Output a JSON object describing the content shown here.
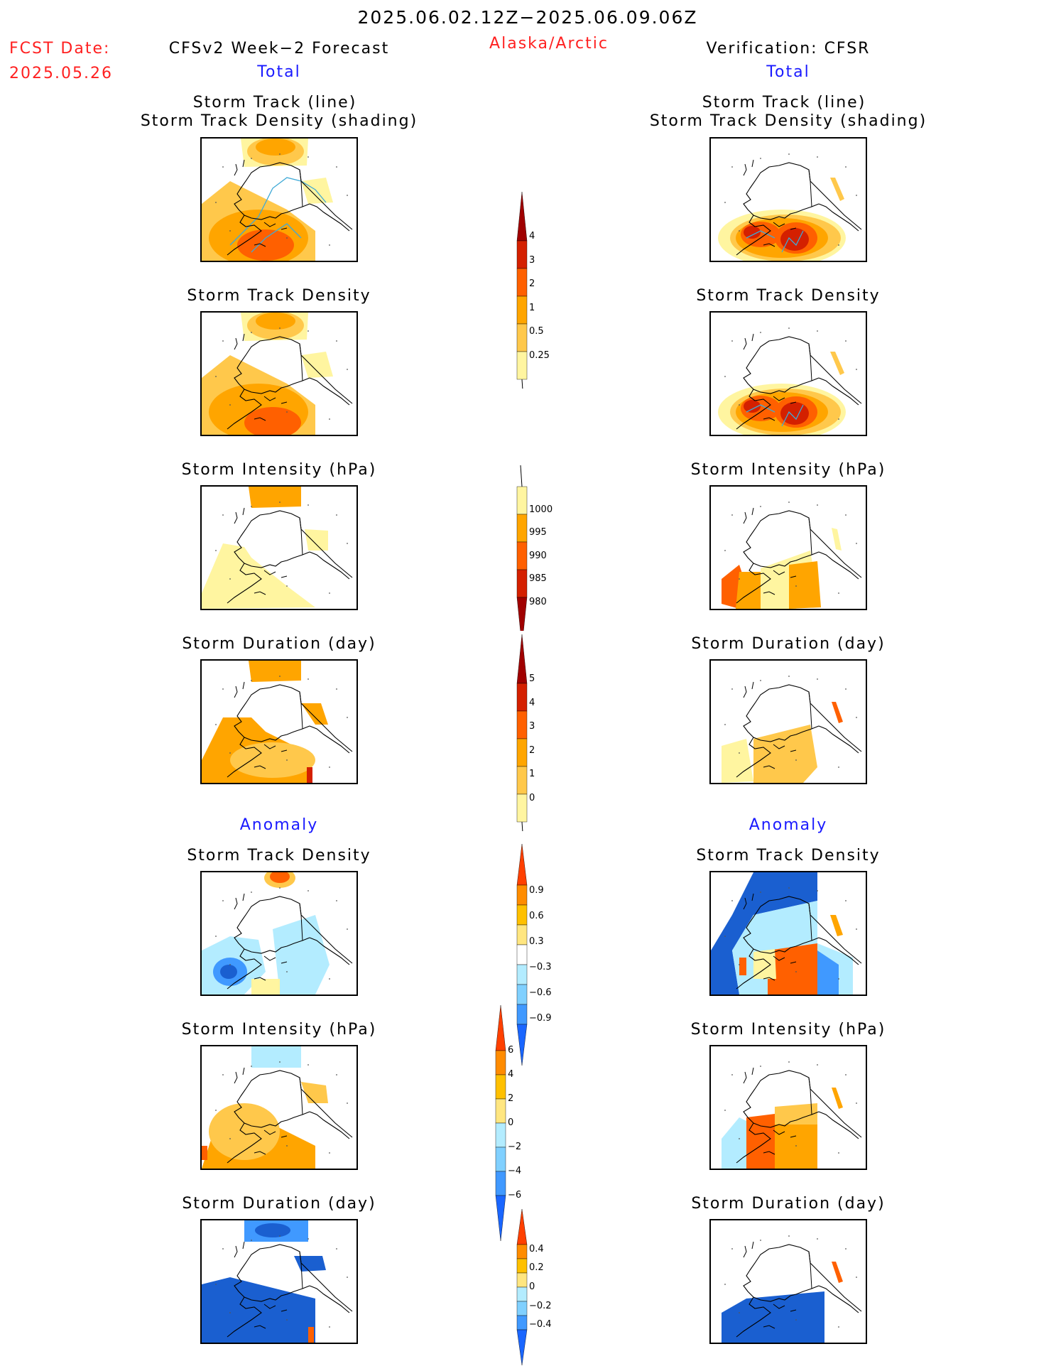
{
  "header": {
    "period": "2025.06.02.12Z−2025.06.09.06Z",
    "fcst_label": "FCST Date:",
    "fcst_date": "2025.05.26",
    "left_title": "CFSv2 Week−2 Forecast",
    "region": "Alaska/Arctic",
    "right_title": "Verification: CFSR"
  },
  "sections": {
    "total": "Total",
    "anomaly": "Anomaly"
  },
  "panel_titles": {
    "track_line": "Storm Track (line)",
    "track_shading": "Storm Track Density (shading)",
    "density": "Storm Track Density",
    "intensity": "Storm Intensity (hPa)",
    "duration": "Storm Duration (day)"
  },
  "colorbars": {
    "total_density": {
      "labels": [
        "4",
        "3",
        "2",
        "1",
        "0.5",
        "0.25"
      ],
      "colors": [
        "#a00000",
        "#d42000",
        "#ff6000",
        "#ffa500",
        "#ffc84b",
        "#fff5a0"
      ]
    },
    "total_intensity": {
      "labels": [
        "1000",
        "995",
        "990",
        "985",
        "980"
      ],
      "colors": [
        "#fff5a0",
        "#ffa500",
        "#ff6000",
        "#d42000",
        "#a00000"
      ]
    },
    "total_duration": {
      "labels": [
        "5",
        "4",
        "3",
        "2",
        "1",
        "0"
      ],
      "colors": [
        "#a00000",
        "#d42000",
        "#ff6000",
        "#ffa500",
        "#ffc84b",
        "#fff5a0"
      ]
    },
    "anom_density": {
      "labels": [
        "0.9",
        "0.6",
        "0.3",
        "−0.3",
        "−0.6",
        "−0.9"
      ],
      "colors": [
        "#ff4000",
        "#ff8c00",
        "#ffc000",
        "#ffe680",
        "#ffffff",
        "#b3ecff",
        "#80d0ff",
        "#4099ff",
        "#1a66ff"
      ]
    },
    "anom_intensity": {
      "labels": [
        "6",
        "4",
        "2",
        "0",
        "−2",
        "−4",
        "−6"
      ],
      "colors": [
        "#ff4000",
        "#ff8c00",
        "#ffc000",
        "#ffe680",
        "#b3ecff",
        "#80d0ff",
        "#4099ff",
        "#1a66ff"
      ]
    },
    "anom_duration": {
      "labels": [
        "0.4",
        "0.2",
        "0",
        "−0.2",
        "−0.4"
      ],
      "colors": [
        "#ff4000",
        "#ff8c00",
        "#ffc000",
        "#ffe680",
        "#b3ecff",
        "#80d0ff",
        "#4099ff",
        "#1a66ff"
      ]
    }
  },
  "palette": {
    "red": "#ff2020",
    "blue": "#1a1aff",
    "yellow": "#fff5a0",
    "light_orange": "#ffc84b",
    "orange": "#ffa500",
    "dark_orange": "#ff6000",
    "red_orange": "#d42000",
    "dark_red": "#a00000",
    "light_blue": "#b3ecff",
    "mid_blue": "#4099ff",
    "dark_blue": "#1a5fd0"
  }
}
